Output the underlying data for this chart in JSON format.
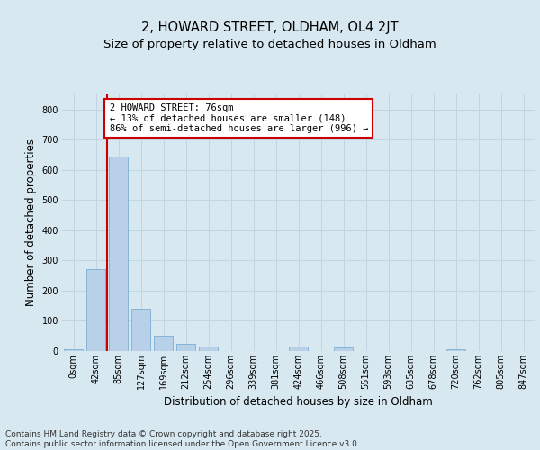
{
  "title_line1": "2, HOWARD STREET, OLDHAM, OL4 2JT",
  "title_line2": "Size of property relative to detached houses in Oldham",
  "xlabel": "Distribution of detached houses by size in Oldham",
  "ylabel": "Number of detached properties",
  "categories": [
    "0sqm",
    "42sqm",
    "85sqm",
    "127sqm",
    "169sqm",
    "212sqm",
    "254sqm",
    "296sqm",
    "339sqm",
    "381sqm",
    "424sqm",
    "466sqm",
    "508sqm",
    "551sqm",
    "593sqm",
    "635sqm",
    "678sqm",
    "720sqm",
    "762sqm",
    "805sqm",
    "847sqm"
  ],
  "values": [
    5,
    270,
    645,
    140,
    50,
    25,
    15,
    0,
    0,
    0,
    15,
    0,
    12,
    0,
    0,
    0,
    0,
    5,
    0,
    0,
    0
  ],
  "bar_color": "#b8d0e8",
  "bar_edgecolor": "#7aaed4",
  "vline_color": "#cc0000",
  "annotation_text": "2 HOWARD STREET: 76sqm\n← 13% of detached houses are smaller (148)\n86% of semi-detached houses are larger (996) →",
  "annotation_box_edgecolor": "#cc0000",
  "annotation_box_facecolor": "white",
  "ylim": [
    0,
    850
  ],
  "yticks": [
    0,
    100,
    200,
    300,
    400,
    500,
    600,
    700,
    800
  ],
  "grid_color": "#c0d4e4",
  "bg_color": "#d8e8f0",
  "plot_bg_color": "#d8e8f0",
  "footer_text": "Contains HM Land Registry data © Crown copyright and database right 2025.\nContains public sector information licensed under the Open Government Licence v3.0.",
  "title_fontsize": 10.5,
  "subtitle_fontsize": 9.5,
  "annotation_fontsize": 7.5,
  "axis_label_fontsize": 8.5,
  "tick_fontsize": 7,
  "footer_fontsize": 6.5
}
